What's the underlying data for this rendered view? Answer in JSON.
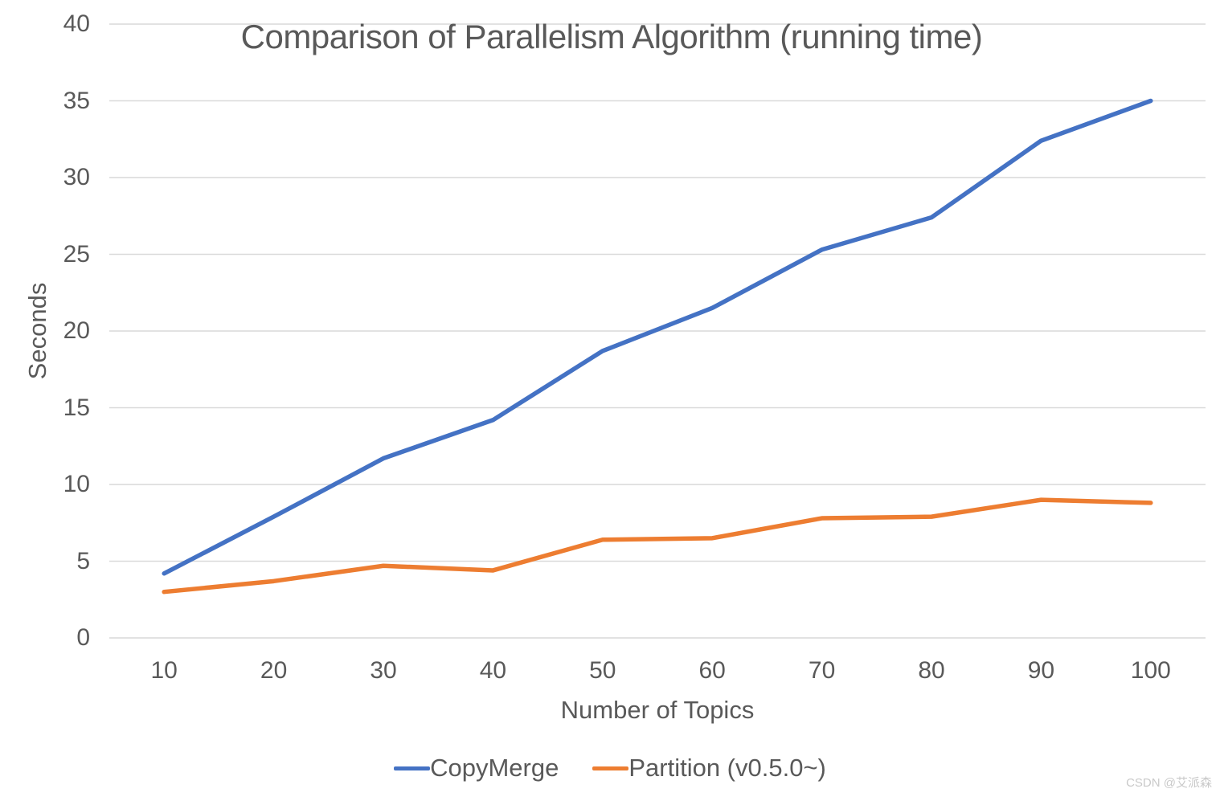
{
  "chart_data": {
    "type": "line",
    "title": "Comparison of Parallelism Algorithm (running time)",
    "xlabel": "Number of Topics",
    "ylabel": "Seconds",
    "categories": [
      10,
      20,
      30,
      40,
      50,
      60,
      70,
      80,
      90,
      100
    ],
    "series": [
      {
        "name": "CopyMerge",
        "color": "#4472C4",
        "values": [
          4.2,
          7.9,
          11.7,
          14.2,
          18.7,
          21.5,
          25.3,
          27.4,
          32.4,
          35
        ]
      },
      {
        "name": "Partition (v0.5.0~)",
        "color": "#ED7D31",
        "values": [
          3,
          3.7,
          4.7,
          4.4,
          6.4,
          6.5,
          7.8,
          7.9,
          9,
          8.8
        ]
      }
    ],
    "ylim": [
      0,
      40
    ],
    "ytick_step": 5,
    "grid": true,
    "gridline_color": "#D9D9D9",
    "text_color": "#595959",
    "legend_position": "bottom"
  },
  "watermark": {
    "text": "CSDN @艾派森"
  }
}
